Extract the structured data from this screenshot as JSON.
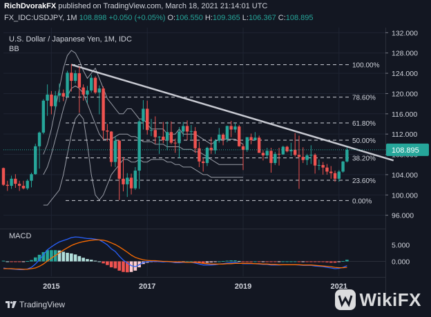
{
  "header": {
    "author": "RichDvorakFX",
    "published": "published on TradingView.com, March 18, 2021 21:14:01 UTC",
    "symbol": "FX_IDC:USDJPY, 1M",
    "last": "108.898",
    "change": "+0.050 (+0.05%)",
    "o_label": "O:",
    "o": "106.550",
    "h_label": "H:",
    "h": "109.365",
    "l_label": "L:",
    "l": "106.367",
    "c_label": "C:",
    "c": "108.895"
  },
  "chart_data": [
    {
      "type": "candlestick",
      "title": "U.S. Dollar / Japanese Yen, 1M, IDC",
      "indicator": "BB",
      "y_ticks": [
        96.0,
        100.0,
        104.0,
        108.0,
        112.0,
        116.0,
        120.0,
        124.0,
        128.0,
        132.0
      ],
      "y_tick_labels": [
        "96.000",
        "100.000",
        "104.000",
        "108.000",
        "112.000",
        "116.000",
        "120.000",
        "124.000",
        "128.000",
        "132.000"
      ],
      "ylim": [
        93.5,
        133.0
      ],
      "x_ticks": [
        "2015",
        "2017",
        "2019",
        "2021"
      ],
      "last_price_label": "108.895",
      "fib_levels": [
        {
          "label": "100.00%",
          "value": 125.7
        },
        {
          "label": "78.60%",
          "value": 119.3
        },
        {
          "label": "61.80%",
          "value": 114.2
        },
        {
          "label": "50.00%",
          "value": 110.8
        },
        {
          "label": "38.20%",
          "value": 107.3
        },
        {
          "label": "23.60%",
          "value": 102.9
        },
        {
          "label": "0.00%",
          "value": 98.9
        }
      ],
      "trendline": {
        "start": [
          "2015-06",
          125.7
        ],
        "end": [
          "2021-06",
          106.4
        ]
      },
      "bollinger": {
        "upper": [
          108,
          110,
          113,
          117,
          121,
          125,
          127.5,
          128.5,
          128,
          126.5,
          124.5,
          123,
          124,
          125,
          123,
          121,
          119,
          118,
          117,
          116,
          116,
          117,
          117,
          116,
          115,
          115,
          114,
          113,
          113,
          113,
          113,
          112,
          112,
          112,
          113,
          112,
          112,
          112,
          112,
          111.5,
          111,
          110.5,
          110,
          110.5,
          111,
          111,
          111,
          111,
          111,
          110.5,
          110
        ],
        "middle": [
          104,
          105.5,
          108,
          111,
          114,
          117,
          119.5,
          121,
          121.5,
          121,
          120,
          118,
          116,
          114,
          112,
          111,
          111,
          111,
          111.5,
          112,
          112,
          112,
          111.5,
          111.5,
          111,
          110.5,
          110.5,
          110.5,
          110,
          110,
          110,
          109.5,
          109.5,
          109.5,
          109.5,
          109,
          109,
          109,
          108.5,
          108.5,
          108,
          107.5,
          107,
          106.5,
          106,
          106,
          106,
          106,
          106,
          106,
          106
        ],
        "lower": [
          98,
          98,
          99,
          100,
          101,
          104,
          108,
          112,
          115,
          116,
          115,
          110,
          104,
          100,
          99,
          100,
          102,
          104,
          105,
          106,
          107,
          107,
          106.5,
          106.5,
          107,
          106.5,
          106.5,
          107,
          107,
          107,
          107,
          106.5,
          106.5,
          106,
          106,
          105.5,
          105.5,
          105.5,
          105,
          104.5,
          104,
          104,
          103.5,
          103.5,
          103.5,
          103.5,
          103.5,
          103.5,
          103.5,
          103.5,
          103.5
        ]
      },
      "x_dates": [
        "2014-01",
        "2014-02",
        "2014-03",
        "2014-04",
        "2014-05",
        "2014-06",
        "2014-07",
        "2014-08",
        "2014-09",
        "2014-10",
        "2014-11",
        "2014-12",
        "2015-01",
        "2015-02",
        "2015-03",
        "2015-04",
        "2015-05",
        "2015-06",
        "2015-07",
        "2015-08",
        "2015-09",
        "2015-10",
        "2015-11",
        "2015-12",
        "2016-01",
        "2016-02",
        "2016-03",
        "2016-04",
        "2016-05",
        "2016-06",
        "2016-07",
        "2016-08",
        "2016-09",
        "2016-10",
        "2016-11",
        "2016-12",
        "2017-01",
        "2017-02",
        "2017-03",
        "2017-04",
        "2017-05",
        "2017-06",
        "2017-07",
        "2017-08",
        "2017-09",
        "2017-10",
        "2017-11",
        "2017-12",
        "2018-01",
        "2018-02",
        "2018-03",
        "2018-04",
        "2018-05",
        "2018-06",
        "2018-07",
        "2018-08",
        "2018-09",
        "2018-10",
        "2018-11",
        "2018-12",
        "2019-01",
        "2019-02",
        "2019-03",
        "2019-04",
        "2019-05",
        "2019-06",
        "2019-07",
        "2019-08",
        "2019-09",
        "2019-10",
        "2019-11",
        "2019-12",
        "2020-01",
        "2020-02",
        "2020-03",
        "2020-04",
        "2020-05",
        "2020-06",
        "2020-07",
        "2020-08",
        "2020-09",
        "2020-10",
        "2020-11",
        "2020-12",
        "2021-01",
        "2021-02",
        "2021-03"
      ],
      "ohlc": [
        [
          105.3,
          105.4,
          101.8,
          102.0
        ],
        [
          102.0,
          102.8,
          100.8,
          101.8
        ],
        [
          101.8,
          103.8,
          101.2,
          103.2
        ],
        [
          103.2,
          104.1,
          101.4,
          102.2
        ],
        [
          102.2,
          102.8,
          100.8,
          101.8
        ],
        [
          101.8,
          102.8,
          101.1,
          101.3
        ],
        [
          101.3,
          103.1,
          101.0,
          102.8
        ],
        [
          102.8,
          104.4,
          101.5,
          104.1
        ],
        [
          104.1,
          110.1,
          104.0,
          109.6
        ],
        [
          109.6,
          112.5,
          105.2,
          112.3
        ],
        [
          112.3,
          118.9,
          112.0,
          118.6
        ],
        [
          118.6,
          121.8,
          115.6,
          119.8
        ],
        [
          119.8,
          120.5,
          115.9,
          117.5
        ],
        [
          117.5,
          120.5,
          116.8,
          119.6
        ],
        [
          119.6,
          122.0,
          118.3,
          120.1
        ],
        [
          120.1,
          120.8,
          118.5,
          119.4
        ],
        [
          119.4,
          124.5,
          119.2,
          124.1
        ],
        [
          124.1,
          125.8,
          120.4,
          122.5
        ],
        [
          122.5,
          124.6,
          122.0,
          124.0
        ],
        [
          124.0,
          125.3,
          116.2,
          121.2
        ],
        [
          121.2,
          121.8,
          118.6,
          119.8
        ],
        [
          119.8,
          121.5,
          118.1,
          120.6
        ],
        [
          120.6,
          123.7,
          120.2,
          123.1
        ],
        [
          123.1,
          123.4,
          119.9,
          120.2
        ],
        [
          120.2,
          121.6,
          115.9,
          121.0
        ],
        [
          121.0,
          121.4,
          110.9,
          112.7
        ],
        [
          112.7,
          114.0,
          110.6,
          112.5
        ],
        [
          112.5,
          112.6,
          105.6,
          106.5
        ],
        [
          106.5,
          111.5,
          105.5,
          110.7
        ],
        [
          110.7,
          110.9,
          99.0,
          103.2
        ],
        [
          103.2,
          107.5,
          100.7,
          102.1
        ],
        [
          102.1,
          104.3,
          99.6,
          103.4
        ],
        [
          103.4,
          104.2,
          100.1,
          101.3
        ],
        [
          101.3,
          105.5,
          101.0,
          104.8
        ],
        [
          104.8,
          114.8,
          101.2,
          114.5
        ],
        [
          114.5,
          118.7,
          112.9,
          117.0
        ],
        [
          117.0,
          118.6,
          111.9,
          112.8
        ],
        [
          112.8,
          115.0,
          111.6,
          112.8
        ],
        [
          112.8,
          115.5,
          110.1,
          111.4
        ],
        [
          111.4,
          111.6,
          108.1,
          111.5
        ],
        [
          111.5,
          114.4,
          110.2,
          110.8
        ],
        [
          110.8,
          114.5,
          108.8,
          112.4
        ],
        [
          112.4,
          114.5,
          110.0,
          110.3
        ],
        [
          110.3,
          111.1,
          108.3,
          110.2
        ],
        [
          110.2,
          113.4,
          107.3,
          112.5
        ],
        [
          112.5,
          114.4,
          111.5,
          113.6
        ],
        [
          113.6,
          114.7,
          110.8,
          112.5
        ],
        [
          112.5,
          113.8,
          111.0,
          112.6
        ],
        [
          112.6,
          113.4,
          108.3,
          109.2
        ],
        [
          109.2,
          110.5,
          105.5,
          106.6
        ],
        [
          106.6,
          107.3,
          104.6,
          106.3
        ],
        [
          106.3,
          109.5,
          105.7,
          109.3
        ],
        [
          109.3,
          111.4,
          108.1,
          108.8
        ],
        [
          108.8,
          111.0,
          108.1,
          110.7
        ],
        [
          110.7,
          113.2,
          110.3,
          111.9
        ],
        [
          111.9,
          112.2,
          109.8,
          111.0
        ],
        [
          111.0,
          113.7,
          110.4,
          113.6
        ],
        [
          113.6,
          114.6,
          111.4,
          112.9
        ],
        [
          112.9,
          114.2,
          112.3,
          113.5
        ],
        [
          113.5,
          113.8,
          109.5,
          109.6
        ],
        [
          109.6,
          110.0,
          104.9,
          108.9
        ],
        [
          108.9,
          111.4,
          108.5,
          111.4
        ],
        [
          111.4,
          112.1,
          110.0,
          110.8
        ],
        [
          110.8,
          112.4,
          110.7,
          111.3
        ],
        [
          111.3,
          111.7,
          108.3,
          108.3
        ],
        [
          108.3,
          108.8,
          106.8,
          107.8
        ],
        [
          107.8,
          109.3,
          107.2,
          108.7
        ],
        [
          108.7,
          109.3,
          104.4,
          106.3
        ],
        [
          106.3,
          108.5,
          105.9,
          108.1
        ],
        [
          108.1,
          109.3,
          105.8,
          108.0
        ],
        [
          108.0,
          109.7,
          107.9,
          109.5
        ],
        [
          109.5,
          109.7,
          108.4,
          108.6
        ],
        [
          108.6,
          110.3,
          107.7,
          108.9
        ],
        [
          108.9,
          112.2,
          107.6,
          107.9
        ],
        [
          107.9,
          111.7,
          101.2,
          107.5
        ],
        [
          107.5,
          109.4,
          106.3,
          106.9
        ],
        [
          106.9,
          108.1,
          105.9,
          107.8
        ],
        [
          107.8,
          109.8,
          106.1,
          107.9
        ],
        [
          107.9,
          108.2,
          104.2,
          105.8
        ],
        [
          105.8,
          107.0,
          104.9,
          105.9
        ],
        [
          105.9,
          106.5,
          104.0,
          105.4
        ],
        [
          105.4,
          106.1,
          104.0,
          104.6
        ],
        [
          104.6,
          105.7,
          103.2,
          104.3
        ],
        [
          104.3,
          104.8,
          102.6,
          103.2
        ],
        [
          103.2,
          104.9,
          102.6,
          104.6
        ],
        [
          104.6,
          106.7,
          104.4,
          106.6
        ],
        [
          106.6,
          109.4,
          106.4,
          108.9
        ]
      ]
    },
    {
      "type": "macd",
      "title": "MACD",
      "y_ticks": [
        5.0,
        0.0
      ],
      "y_tick_labels": [
        "5.000",
        "0.000"
      ],
      "ylim": [
        -4.5,
        9.5
      ],
      "x_dates": [
        "2014-01",
        "2014-02",
        "2014-03",
        "2014-04",
        "2014-05",
        "2014-06",
        "2014-07",
        "2014-08",
        "2014-09",
        "2014-10",
        "2014-11",
        "2014-12",
        "2015-01",
        "2015-02",
        "2015-03",
        "2015-04",
        "2015-05",
        "2015-06",
        "2015-07",
        "2015-08",
        "2015-09",
        "2015-10",
        "2015-11",
        "2015-12",
        "2016-01",
        "2016-02",
        "2016-03",
        "2016-04",
        "2016-05",
        "2016-06",
        "2016-07",
        "2016-08",
        "2016-09",
        "2016-10",
        "2016-11",
        "2016-12",
        "2017-01",
        "2017-02",
        "2017-03",
        "2017-04",
        "2017-05",
        "2017-06",
        "2017-07",
        "2017-08",
        "2017-09",
        "2017-10",
        "2017-11",
        "2017-12",
        "2018-01",
        "2018-02",
        "2018-03",
        "2018-04",
        "2018-05",
        "2018-06",
        "2018-07",
        "2018-08",
        "2018-09",
        "2018-10",
        "2018-11",
        "2018-12",
        "2019-01",
        "2019-02",
        "2019-03",
        "2019-04",
        "2019-05",
        "2019-06",
        "2019-07",
        "2019-08",
        "2019-09",
        "2019-10",
        "2019-11",
        "2019-12",
        "2020-01",
        "2020-02",
        "2020-03",
        "2020-04",
        "2020-05",
        "2020-06",
        "2020-07",
        "2020-08",
        "2020-09",
        "2020-10",
        "2020-11",
        "2020-12",
        "2021-01",
        "2021-02",
        "2021-03"
      ],
      "macd": [
        -2.0,
        -2.2,
        -2.3,
        -2.4,
        -2.5,
        -2.5,
        -2.3,
        -1.8,
        -0.8,
        0.5,
        2.0,
        3.5,
        4.4,
        5.2,
        5.9,
        6.3,
        6.7,
        7.2,
        7.4,
        7.3,
        7.1,
        6.9,
        6.9,
        6.7,
        6.5,
        5.8,
        5.0,
        3.8,
        3.0,
        1.6,
        0.4,
        -0.5,
        -1.3,
        -1.6,
        -1.0,
        -0.3,
        -0.1,
        0.0,
        0.0,
        -0.1,
        -0.2,
        -0.1,
        -0.2,
        -0.4,
        -0.4,
        -0.3,
        -0.3,
        -0.3,
        -0.5,
        -0.8,
        -1.1,
        -1.1,
        -1.1,
        -1.0,
        -0.8,
        -0.7,
        -0.5,
        -0.4,
        -0.3,
        -0.5,
        -0.7,
        -0.7,
        -0.7,
        -0.7,
        -0.8,
        -0.9,
        -0.9,
        -1.1,
        -1.1,
        -1.1,
        -1.0,
        -1.0,
        -1.0,
        -1.0,
        -1.1,
        -1.2,
        -1.2,
        -1.2,
        -1.4,
        -1.5,
        -1.6,
        -1.8,
        -2.0,
        -2.2,
        -2.1,
        -1.8,
        -1.3
      ],
      "signal": [
        -2.2,
        -2.2,
        -2.2,
        -2.3,
        -2.3,
        -2.4,
        -2.4,
        -2.2,
        -2.0,
        -1.5,
        -0.8,
        0.1,
        1.0,
        1.8,
        2.6,
        3.4,
        4.1,
        4.8,
        5.3,
        5.7,
        6.0,
        6.2,
        6.4,
        6.5,
        6.5,
        6.4,
        6.1,
        5.6,
        5.1,
        4.4,
        3.6,
        2.8,
        1.9,
        1.2,
        0.8,
        0.5,
        0.3,
        0.2,
        0.2,
        0.1,
        0.0,
        0.0,
        -0.1,
        -0.2,
        -0.2,
        -0.2,
        -0.3,
        -0.3,
        -0.3,
        -0.4,
        -0.6,
        -0.7,
        -0.8,
        -0.8,
        -0.8,
        -0.8,
        -0.7,
        -0.7,
        -0.6,
        -0.6,
        -0.6,
        -0.6,
        -0.6,
        -0.7,
        -0.7,
        -0.8,
        -0.8,
        -0.9,
        -0.9,
        -1.0,
        -1.0,
        -1.0,
        -1.0,
        -1.0,
        -1.0,
        -1.1,
        -1.1,
        -1.1,
        -1.2,
        -1.3,
        -1.4,
        -1.5,
        -1.6,
        -1.8,
        -1.9,
        -1.9,
        -1.8
      ]
    }
  ],
  "colors": {
    "up": "#26a69a",
    "down": "#ef5350",
    "macd_line": "#2962ff",
    "signal_line": "#ff6d00",
    "bb": "#b2b5be",
    "trendline": "#c8cad2",
    "bg": "#131722"
  },
  "footer": {
    "brand": "TradingView",
    "watermark": "WikiFX"
  }
}
